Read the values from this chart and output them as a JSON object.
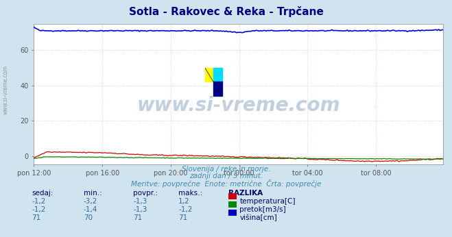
{
  "title": "Sotla - Rakovec & Reka - Trpčane",
  "title_color": "#000080",
  "background_color": "#d0e4f0",
  "plot_bg_color": "#ffffff",
  "grid_color": "#ffaaaa",
  "num_points": 288,
  "x_tick_labels": [
    "pon 12:00",
    "pon 16:00",
    "pon 20:00",
    "tor 00:00",
    "tor 04:00",
    "tor 08:00"
  ],
  "x_tick_positions": [
    0,
    48,
    96,
    144,
    192,
    240
  ],
  "ylim": [
    -5,
    75
  ],
  "yticks": [
    0,
    20,
    40,
    60
  ],
  "temp_color": "#cc0000",
  "flow_color": "#008800",
  "height_color": "#0000cc",
  "subtitle1": "Slovenija / reke in morje.",
  "subtitle2": "zadnji dan / 5 minut.",
  "subtitle3": "Meritve: povprečne  Enote: metrične  Črta: povprečje",
  "subtitle_color": "#4488aa",
  "table_header": [
    "sedaj:",
    "min.:",
    "povpr.:",
    "maks.:",
    "RAZLIKA"
  ],
  "table_color_header": "#000066",
  "table_color_vals": "#336699",
  "watermark_text": "www.si-vreme.com",
  "watermark_color": "#336699",
  "legend_labels": [
    "temperatura[C]",
    "pretok[m3/s]",
    "višina[cm]"
  ],
  "rows": [
    [
      "-1,2",
      "-3,2",
      "-1,3",
      "1,2"
    ],
    [
      "-1,2",
      "-1,4",
      "-1,3",
      "-1,2"
    ],
    [
      "71",
      "70",
      "71",
      "71"
    ]
  ],
  "side_watermark": "www.si-vreme.com"
}
